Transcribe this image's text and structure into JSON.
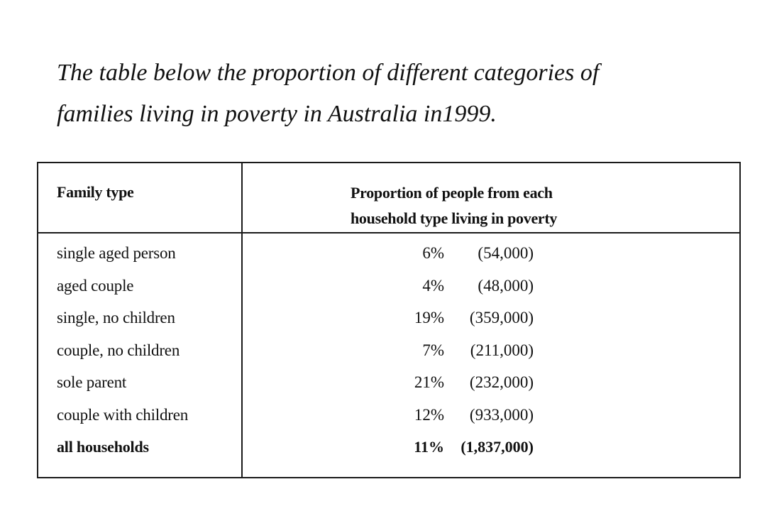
{
  "intro": {
    "line1": "The table below the proportion of different categories of",
    "line2": "families living in poverty in Australia in1999."
  },
  "table": {
    "header": {
      "family_type": "Family type",
      "proportion_line1": "Proportion of people from each",
      "proportion_line2": "household type living in poverty"
    },
    "rows": [
      {
        "type": "single aged person",
        "percent": "6%",
        "count": "(54,000)"
      },
      {
        "type": "aged couple",
        "percent": "4%",
        "count": "(48,000)"
      },
      {
        "type": "single, no children",
        "percent": "19%",
        "count": "(359,000)"
      },
      {
        "type": "couple, no children",
        "percent": "7%",
        "count": "(211,000)"
      },
      {
        "type": "sole parent",
        "percent": "21%",
        "count": "(232,000)"
      },
      {
        "type": "couple with children",
        "percent": "12%",
        "count": "(933,000)"
      },
      {
        "type": "all households",
        "percent": "11%",
        "count": "(1,837,000)"
      }
    ]
  }
}
